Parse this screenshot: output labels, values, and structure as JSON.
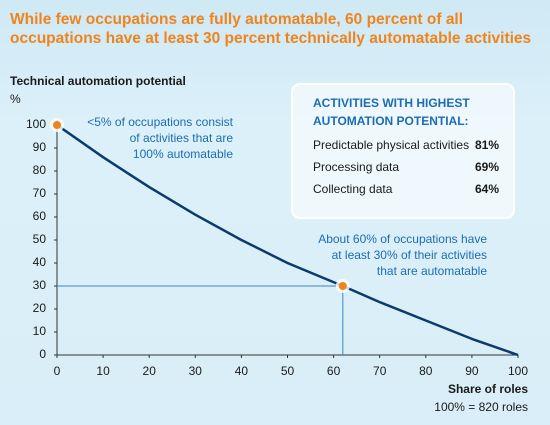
{
  "chart_data": {
    "type": "line",
    "title": "While few occupations are fully automatable, 60 percent of all occupations have at least 30 percent technically automatable activities",
    "y_label_lines": [
      "Technical automation potential",
      "%"
    ],
    "x_label_lines": [
      "Share of roles",
      "100% = 820 roles"
    ],
    "x": [
      0,
      10,
      20,
      30,
      40,
      50,
      62,
      70,
      80,
      90,
      100
    ],
    "values": [
      100,
      86,
      73,
      61,
      50,
      40,
      30,
      23,
      15,
      7,
      0
    ],
    "color": "#0b3a6e",
    "xlim": [
      0,
      100
    ],
    "ylim": [
      0,
      100
    ],
    "xticks": [
      0,
      10,
      20,
      30,
      40,
      50,
      60,
      70,
      80,
      90,
      100
    ],
    "yticks": [
      0,
      10,
      20,
      30,
      40,
      50,
      60,
      70,
      80,
      90,
      100
    ],
    "highlight_points": [
      {
        "x": 0,
        "y": 100
      },
      {
        "x": 62,
        "y": 30
      }
    ],
    "highlight_color": "#f0841c",
    "annotations": [
      {
        "lines": [
          "<5% of occupations consist",
          "of activities that are",
          "100% automatable"
        ]
      },
      {
        "lines": [
          "About 60% of occupations have",
          "at least 30% of their activities",
          "that are automatable"
        ]
      }
    ],
    "inset": {
      "title_lines": [
        "ACTIVITIES WITH HIGHEST",
        "AUTOMATION POTENTIAL:"
      ],
      "categories": [
        "Predictable physical activities",
        "Processing data",
        "Collecting data"
      ],
      "values": [
        81,
        69,
        64
      ],
      "value_labels": [
        "81%",
        "69%",
        "64%"
      ]
    }
  }
}
